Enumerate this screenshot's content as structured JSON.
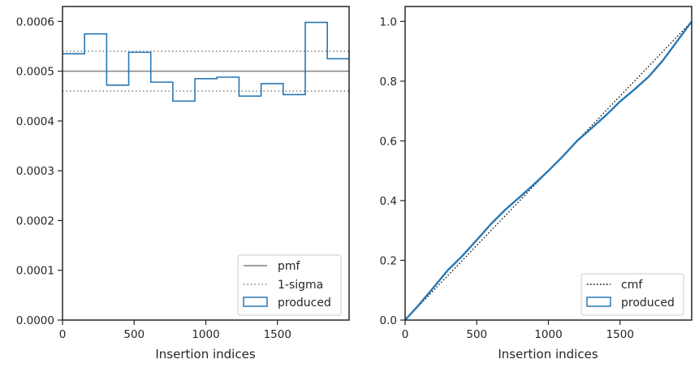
{
  "chart_data": [
    {
      "type": "line",
      "xlabel": "Insertion indices",
      "ylabel": "",
      "xlim": [
        0,
        2000
      ],
      "ylim": [
        0,
        0.00063
      ],
      "xticks": [
        0,
        500,
        1000,
        1500
      ],
      "yticks": [
        0,
        0.0001,
        0.0002,
        0.0003,
        0.0004,
        0.0005,
        0.0006
      ],
      "ytick_labels": [
        "0.0000",
        "0.0001",
        "0.0002",
        "0.0003",
        "0.0004",
        "0.0005",
        "0.0006"
      ],
      "grid": false,
      "legend_position": "lower-right",
      "pmf": 0.0005,
      "sigma_band": [
        0.00046,
        0.00054
      ],
      "histogram_edges": [
        0,
        154,
        308,
        462,
        616,
        770,
        924,
        1078,
        1232,
        1386,
        1540,
        1694,
        1848,
        2000
      ],
      "histogram_values": [
        0.000535,
        0.000575,
        0.000472,
        0.000538,
        0.000478,
        0.00044,
        0.000485,
        0.000488,
        0.00045,
        0.000475,
        0.000453,
        0.000598,
        0.000525
      ],
      "legend": [
        "pmf",
        "1-sigma",
        "produced"
      ],
      "colors": {
        "pmf": "#808080",
        "sigma": "#808080",
        "produced": "#2878b5"
      }
    },
    {
      "type": "line",
      "xlabel": "Insertion indices",
      "ylabel": "",
      "xlim": [
        0,
        2000
      ],
      "ylim": [
        0,
        1.05
      ],
      "xticks": [
        0,
        500,
        1000,
        1500
      ],
      "yticks": [
        0,
        0.2,
        0.4,
        0.6,
        0.8,
        1.0
      ],
      "ytick_labels": [
        "0.0",
        "0.2",
        "0.4",
        "0.6",
        "0.8",
        "1.0"
      ],
      "grid": false,
      "legend_position": "lower-right",
      "cmf": {
        "x": [
          0,
          2000
        ],
        "y": [
          0,
          1
        ]
      },
      "produced": {
        "x": [
          0,
          100,
          200,
          300,
          400,
          500,
          600,
          700,
          800,
          900,
          1000,
          1100,
          1200,
          1300,
          1400,
          1500,
          1600,
          1700,
          1800,
          1900,
          2000
        ],
        "y": [
          0,
          0.053,
          0.11,
          0.168,
          0.215,
          0.268,
          0.322,
          0.37,
          0.412,
          0.455,
          0.5,
          0.548,
          0.6,
          0.642,
          0.685,
          0.732,
          0.772,
          0.815,
          0.87,
          0.935,
          1.0
        ]
      },
      "legend": [
        "cmf",
        "produced"
      ],
      "colors": {
        "cmf": "#000000",
        "produced": "#2878b5"
      }
    }
  ]
}
